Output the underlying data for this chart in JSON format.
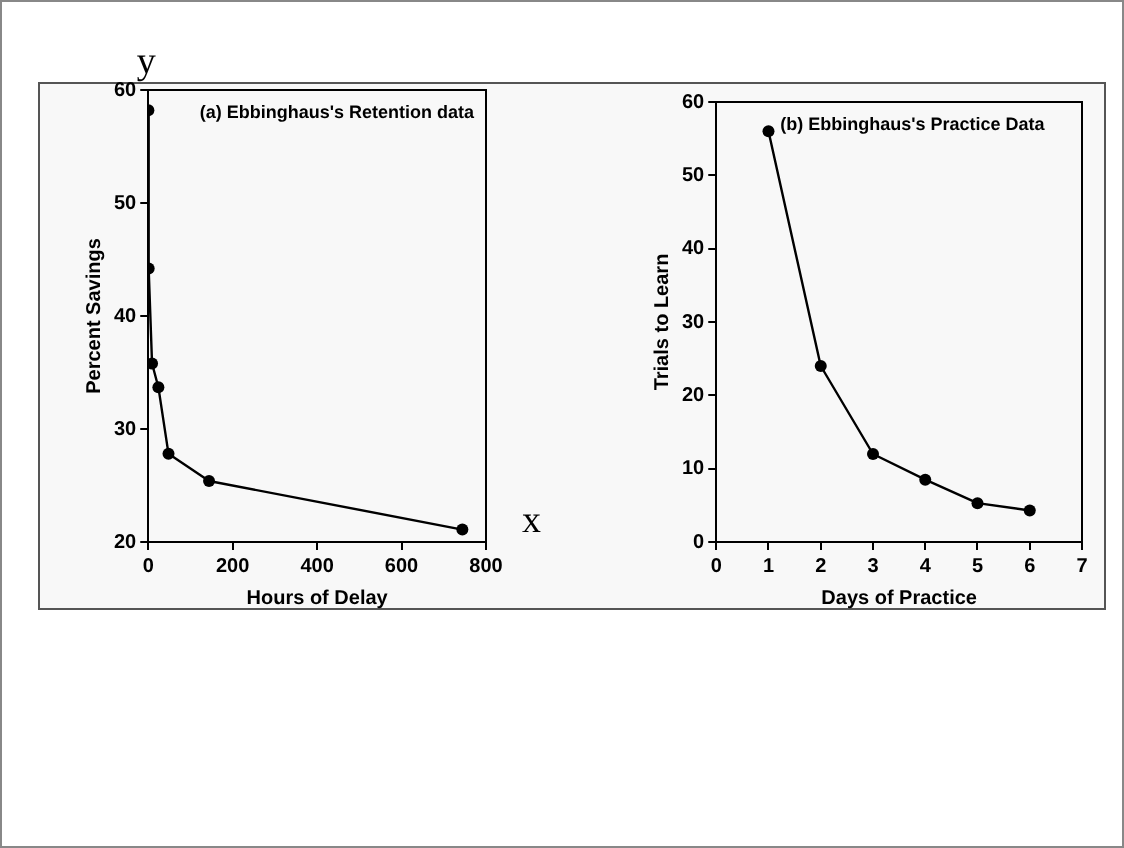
{
  "chart_data": [
    {
      "type": "line",
      "title": "(a) Ebbinghaus's Retention data",
      "xlabel": "Hours of Delay",
      "ylabel": "Percent Savings",
      "annotations": [
        "y",
        "x"
      ],
      "series": [
        {
          "color": "#000000",
          "x": [
            0.33,
            1,
            9,
            24,
            48,
            144,
            744
          ],
          "values": [
            58.2,
            44.2,
            35.8,
            33.7,
            27.8,
            25.4,
            21.1
          ]
        }
      ],
      "xlim": [
        0,
        800
      ],
      "xticks": [
        0,
        200,
        400,
        600,
        800
      ],
      "ylim": [
        20,
        60
      ],
      "yticks": [
        20,
        30,
        40,
        50,
        60
      ],
      "grid": false,
      "legend": false,
      "marker": "circle",
      "line_style": "solid"
    },
    {
      "type": "line",
      "title": "(b) Ebbinghaus's Practice Data",
      "xlabel": "Days of Practice",
      "ylabel": "Trials to Learn",
      "series": [
        {
          "color": "#000000",
          "x": [
            1,
            2,
            3,
            4,
            5,
            6
          ],
          "values": [
            56,
            24,
            12,
            8.5,
            5.3,
            4.3
          ]
        }
      ],
      "xlim": [
        0,
        7
      ],
      "xticks": [
        0,
        1,
        2,
        3,
        4,
        5,
        6,
        7
      ],
      "ylim": [
        0,
        60
      ],
      "yticks": [
        0,
        10,
        20,
        30,
        40,
        50,
        60
      ],
      "grid": false,
      "legend": false,
      "marker": "circle",
      "line_style": "solid"
    }
  ]
}
